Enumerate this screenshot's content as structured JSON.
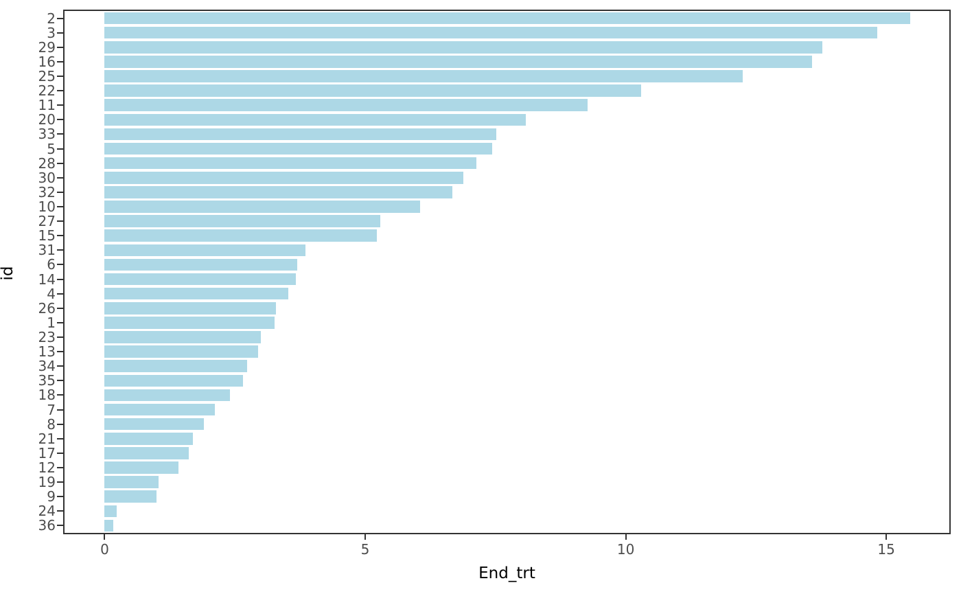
{
  "chart_data": {
    "type": "bar",
    "orientation": "horizontal",
    "title": "",
    "xlabel": "End_trt",
    "ylabel": "id",
    "x_ticks": [
      0,
      5,
      10,
      15
    ],
    "xlim": [
      -0.77,
      16.21
    ],
    "grid": false,
    "legend_position": "none",
    "bar_color": "#ADD8E6",
    "panel_border_color": "#333333",
    "tick_mark_color": "#333333",
    "tick_label_color": "#4d4d4d",
    "axis_title_color": "#000000",
    "categories": [
      "2",
      "3",
      "29",
      "16",
      "25",
      "22",
      "11",
      "20",
      "33",
      "5",
      "28",
      "30",
      "32",
      "10",
      "27",
      "15",
      "31",
      "6",
      "14",
      "4",
      "26",
      "1",
      "23",
      "13",
      "34",
      "35",
      "18",
      "7",
      "8",
      "21",
      "17",
      "12",
      "19",
      "9",
      "24",
      "36"
    ],
    "values": [
      15.46,
      14.83,
      13.77,
      13.57,
      12.24,
      10.3,
      9.27,
      8.08,
      7.51,
      7.44,
      7.13,
      6.88,
      6.67,
      6.06,
      5.29,
      5.22,
      3.86,
      3.7,
      3.67,
      3.52,
      3.29,
      3.26,
      3.0,
      2.95,
      2.73,
      2.65,
      2.4,
      2.11,
      1.91,
      1.69,
      1.62,
      1.42,
      1.04,
      1.0,
      0.23,
      0.17
    ]
  }
}
